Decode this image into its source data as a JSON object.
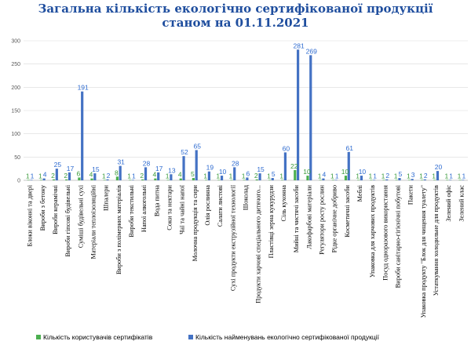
{
  "chart_data": {
    "type": "bar",
    "title_line1": "Загальна кількість екологічно сертифікованої продукції",
    "title_line2": "станом на 01.11.2021",
    "ylim": [
      0,
      300
    ],
    "yticks": [
      0,
      50,
      100,
      150,
      200,
      250,
      300
    ],
    "categories": [
      "Блоки віконні та двері",
      "Вироби з бетону",
      "Вироби керамічні",
      "Вироби гіпсові будівельні",
      "Суміші будівельні сухі",
      "Матеріали теплоізоляційні",
      "Шпалери",
      "Вироби з полімерних матеріалів",
      "Вироби текстильні",
      "Напої алкогольні",
      "Вода питна",
      "Соки та нектари",
      "Чаї та чайні напої",
      "Молочна продукція та сири",
      "Олія рослинна",
      "Салати листові",
      "Сухі продукти екструзійної технології",
      "Шоколад",
      "Продукти харчові спеціального дитячого...",
      "Пластівці зерна кукурудзи",
      "Сіль кухонна",
      "Мийні та чистячі засоби",
      "Лакофарбові матеріали",
      "Регулятори росту рослин",
      "Рідке органічне добриво",
      "Косметичні засоби",
      "Меблі",
      "Упаковка для харчових продуктів",
      "Посуд одноразового використання",
      "Вироби санітарно-гігієнічні побутові",
      "Пакети",
      "Упаковка продукту \"Блок для чищення туалету\"",
      "Устаткування холодильне для продуктів",
      "Зелений офіс",
      "Зелений клас"
    ],
    "series": [
      {
        "name": "Кількість користувачів сертифікатів",
        "color": "#4caf50",
        "label_color": "#3a9a3a",
        "values": [
          1,
          1,
          2,
          2,
          6,
          4,
          1,
          8,
          1,
          2,
          4,
          1,
          4,
          5,
          1,
          1,
          1,
          1,
          2,
          1,
          1,
          22,
          10,
          1,
          1,
          10,
          1,
          1,
          1,
          1,
          1,
          1,
          1,
          1,
          1
        ]
      },
      {
        "name": "Кількість найменувань екологічно сертифікованої продукції",
        "color": "#4472c4",
        "label_color": "#2e6bd0",
        "values": [
          1,
          4,
          25,
          17,
          191,
          15,
          2,
          31,
          1,
          28,
          17,
          13,
          52,
          65,
          19,
          10,
          28,
          6,
          15,
          5,
          60,
          281,
          269,
          4,
          1,
          61,
          10,
          1,
          2,
          5,
          3,
          2,
          20,
          1,
          1
        ]
      }
    ]
  }
}
